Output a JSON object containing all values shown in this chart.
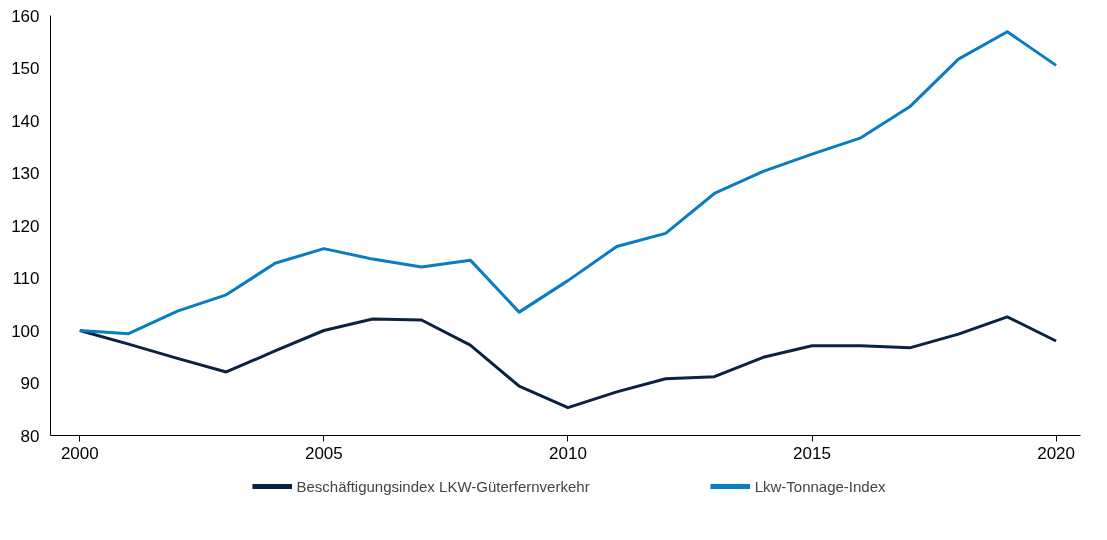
{
  "chart_data": {
    "type": "line",
    "x": [
      2000,
      2001,
      2002,
      2003,
      2004,
      2005,
      2006,
      2007,
      2008,
      2009,
      2010,
      2011,
      2012,
      2013,
      2014,
      2015,
      2016,
      2017,
      2018,
      2019,
      2020
    ],
    "series": [
      {
        "name": "Beschäftigungsindex LKW-Güterfernverkehr",
        "color": "#0c2340",
        "values": [
          100,
          97.4,
          94.7,
          92.1,
          96.1,
          100,
          102.2,
          102.0,
          97.2,
          89.4,
          85.3,
          88.3,
          90.8,
          91.2,
          94.9,
          97.1,
          97.1,
          96.7,
          99.3,
          102.6,
          98.0
        ]
      },
      {
        "name": "Lkw-Tonnage-Index",
        "color": "#0a7cc1",
        "values": [
          100,
          99.4,
          103.7,
          106.8,
          112.8,
          115.6,
          113.6,
          112.1,
          113.4,
          103.5,
          109.5,
          116.0,
          118.5,
          126.1,
          130.3,
          133.6,
          136.7,
          142.6,
          151.7,
          156.9,
          150.5
        ]
      }
    ],
    "xlim": [
      1999.4,
      2020.5
    ],
    "xticks": [
      2000,
      2005,
      2010,
      2015,
      2020
    ],
    "ylim": [
      80,
      160
    ],
    "yticks": [
      80,
      90,
      100,
      110,
      120,
      130,
      140,
      150,
      160
    ],
    "grid": false,
    "legend": "bottom",
    "marker": "none",
    "line_style": "solid"
  }
}
